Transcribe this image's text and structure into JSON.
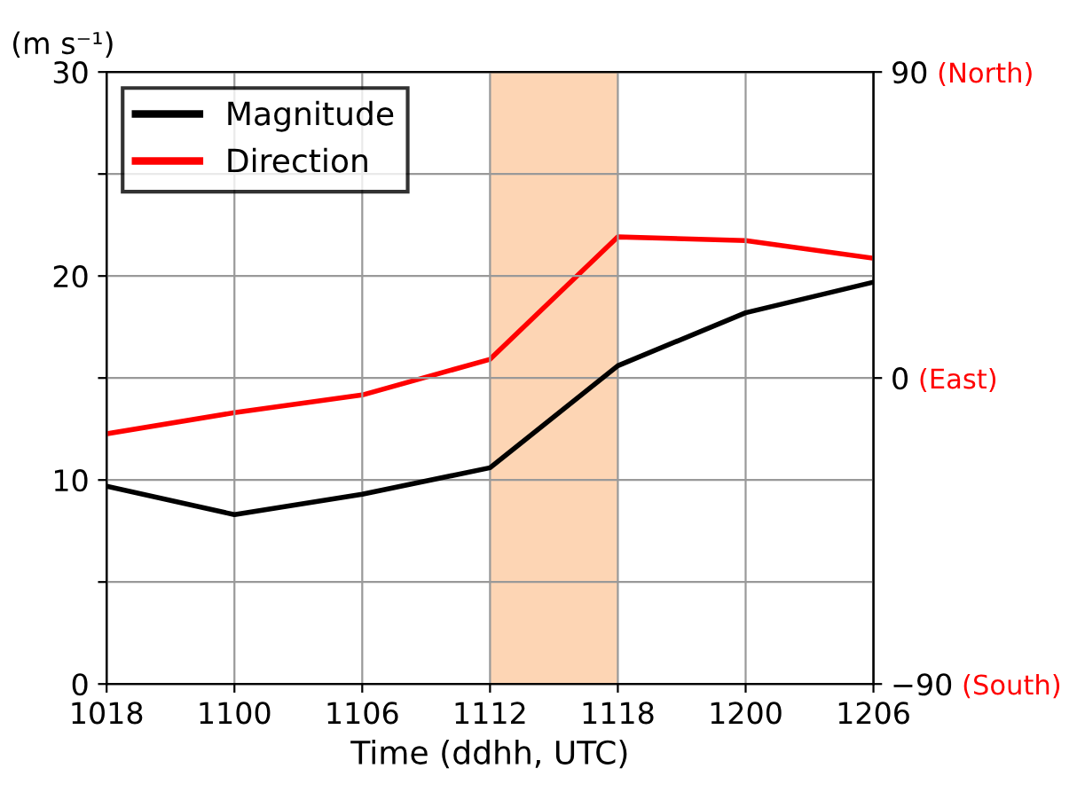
{
  "chart_data": {
    "type": "line",
    "xlabel": "Time (ddhh, UTC)",
    "ylabel": "(m s⁻¹)",
    "categories": [
      "1018",
      "1100",
      "1106",
      "1112",
      "1118",
      "1200",
      "1206"
    ],
    "ylim": [
      0,
      30
    ],
    "yticks": [
      0,
      {
        "value": 5,
        "label": null
      },
      10,
      {
        "value": 15,
        "label": null
      },
      20,
      {
        "value": 25,
        "label": null
      },
      30
    ],
    "y2lim": [
      -90,
      90
    ],
    "y2ticks": [
      {
        "value": -90,
        "label": "−90"
      },
      0,
      90
    ],
    "annotations": [
      "(South)",
      "(East)",
      "(North)"
    ],
    "series": [
      {
        "name": "Magnitude",
        "color": "#000000",
        "values": [
          9.7,
          8.3,
          9.3,
          10.6,
          15.6,
          18.2,
          19.7
        ]
      },
      {
        "name": "Direction",
        "color": "#ff0000",
        "axis": "y2",
        "values": [
          -16.4,
          -10.2,
          -5,
          5.5,
          41.5,
          40.4,
          35.2
        ]
      }
    ],
    "bands": [
      {
        "axis": "x",
        "from": "1112",
        "to": "1118",
        "color": "#fdd5b4"
      }
    ],
    "grid": true,
    "legend": "top left",
    "marker": "none",
    "line_style": "solid"
  }
}
